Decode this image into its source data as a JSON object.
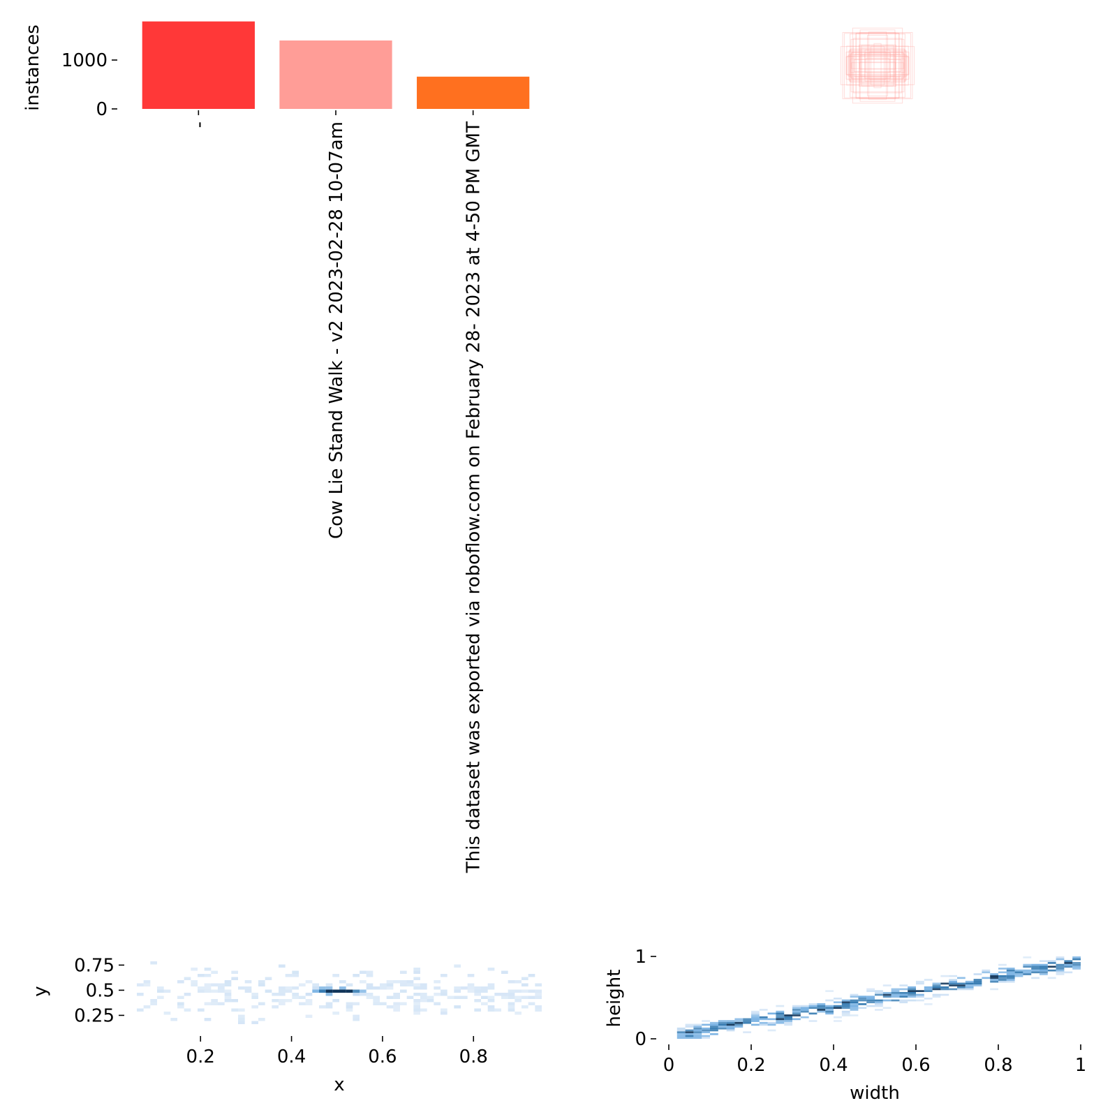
{
  "chart_data": [
    {
      "type": "bar",
      "ylabel": "instances",
      "yticks": [
        0,
        1000
      ],
      "ylim": [
        0,
        1800
      ],
      "grid": false,
      "categories": [
        "-",
        "Cow Lie Stand Walk - v2 2023-02-28 10-07am",
        "This dataset was exported via roboflow.com on February 28- 2023 at 4-50 PM GMT"
      ],
      "values": [
        1790,
        1400,
        660
      ],
      "colors": [
        "#ff3838",
        "#ff9d97",
        "#ff701f"
      ]
    },
    {
      "type": "boxes",
      "description_axisless": true,
      "box_color": "#ff9d97"
    },
    {
      "type": "heatmap",
      "xlabel": "x",
      "ylabel": "y",
      "xticks": [
        0.2,
        0.4,
        0.6,
        0.8
      ],
      "yticks": [
        0.25,
        0.5,
        0.75
      ],
      "xlim": [
        0.06,
        0.95
      ],
      "ylim": [
        0.1,
        0.85
      ],
      "color": "#1f77b4"
    },
    {
      "type": "heatmap",
      "xlabel": "width",
      "ylabel": "height",
      "xticks": [
        0.0,
        0.2,
        0.4,
        0.6,
        0.8,
        1.0
      ],
      "yticks": [
        0,
        1
      ],
      "xlim": [
        0.0,
        1.0
      ],
      "ylim": [
        0.0,
        1.0
      ],
      "color": "#1f77b4"
    }
  ]
}
